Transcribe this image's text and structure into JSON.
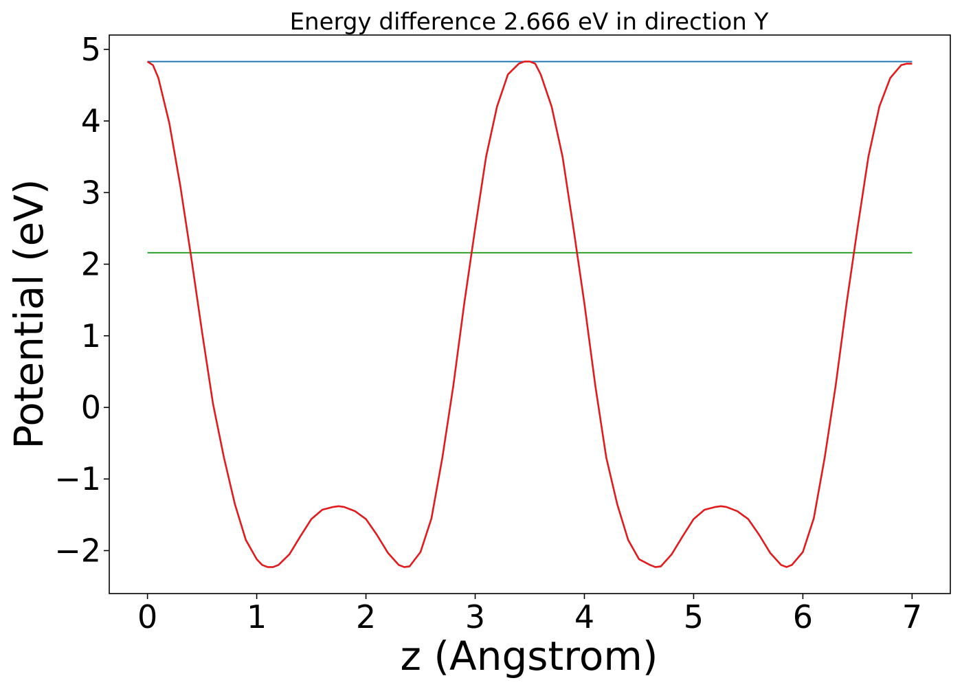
{
  "chart_data": {
    "type": "line",
    "title": "Energy difference 2.666 eV in direction Y",
    "xlabel": "z (Angstrom)",
    "ylabel": "Potential (eV)",
    "xlim": [
      -0.35,
      7.35
    ],
    "ylim": [
      -2.6,
      5.2
    ],
    "grid": false,
    "xticks": [
      0,
      1,
      2,
      3,
      4,
      5,
      6,
      7
    ],
    "yticks": [
      -2,
      -1,
      0,
      1,
      2,
      3,
      4,
      5
    ],
    "xtick_labels": [
      "0",
      "1",
      "2",
      "3",
      "4",
      "5",
      "6",
      "7"
    ],
    "ytick_labels": [
      "−2",
      "−1",
      "0",
      "1",
      "2",
      "3",
      "4",
      "5"
    ],
    "series": [
      {
        "color": "#1f77b4",
        "x": [
          0,
          7
        ],
        "y": [
          4.83,
          4.83
        ]
      },
      {
        "color": "#2ca02c",
        "x": [
          0,
          7
        ],
        "y": [
          2.16,
          2.16
        ]
      },
      {
        "color": "#e31a1c",
        "x": [
          0,
          0.05,
          0.1,
          0.2,
          0.3,
          0.4,
          0.5,
          0.6,
          0.7,
          0.8,
          0.9,
          1.0,
          1.05,
          1.1,
          1.15,
          1.2,
          1.3,
          1.4,
          1.5,
          1.6,
          1.7,
          1.75,
          1.8,
          1.9,
          2.0,
          2.1,
          2.2,
          2.3,
          2.35,
          2.4,
          2.5,
          2.6,
          2.7,
          2.8,
          2.9,
          3.0,
          3.1,
          3.2,
          3.3,
          3.4,
          3.45,
          3.5,
          3.55,
          3.6,
          3.7,
          3.8,
          3.9,
          4.0,
          4.1,
          4.2,
          4.3,
          4.4,
          4.5,
          4.6,
          4.65,
          4.7,
          4.8,
          4.9,
          5.0,
          5.1,
          5.2,
          5.25,
          5.3,
          5.4,
          5.5,
          5.6,
          5.7,
          5.8,
          5.85,
          5.9,
          6.0,
          6.1,
          6.2,
          6.3,
          6.4,
          6.5,
          6.6,
          6.7,
          6.8,
          6.9,
          6.95,
          7.0
        ],
        "y": [
          4.83,
          4.78,
          4.6,
          3.97,
          3.1,
          2.1,
          1.05,
          0.05,
          -0.7,
          -1.35,
          -1.85,
          -2.12,
          -2.2,
          -2.23,
          -2.23,
          -2.2,
          -2.05,
          -1.8,
          -1.56,
          -1.43,
          -1.39,
          -1.38,
          -1.39,
          -1.45,
          -1.56,
          -1.78,
          -2.03,
          -2.2,
          -2.23,
          -2.22,
          -2.02,
          -1.55,
          -0.7,
          0.3,
          1.45,
          2.5,
          3.5,
          4.2,
          4.65,
          4.8,
          4.83,
          4.83,
          4.8,
          4.65,
          4.2,
          3.5,
          2.5,
          1.45,
          0.3,
          -0.7,
          -1.35,
          -1.85,
          -2.12,
          -2.2,
          -2.23,
          -2.22,
          -2.05,
          -1.8,
          -1.56,
          -1.43,
          -1.39,
          -1.38,
          -1.39,
          -1.45,
          -1.56,
          -1.78,
          -2.03,
          -2.2,
          -2.23,
          -2.2,
          -2.02,
          -1.55,
          -0.7,
          0.3,
          1.45,
          2.5,
          3.5,
          4.2,
          4.6,
          4.78,
          4.8,
          4.8
        ]
      }
    ]
  }
}
